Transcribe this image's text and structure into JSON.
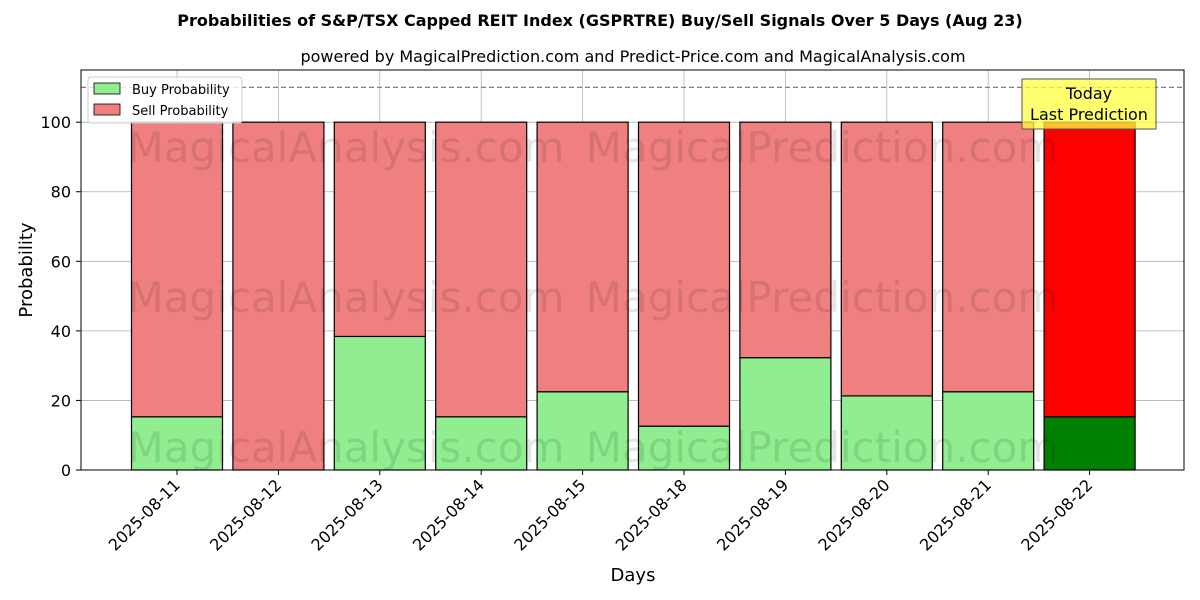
{
  "chart_data": {
    "type": "bar",
    "stacked": true,
    "title": "Probabilities of S&P/TSX Capped REIT Index (GSPRTRE) Buy/Sell Signals Over 5 Days (Aug 23)",
    "subtitle": "powered by MagicalPrediction.com and Predict-Price.com and MagicalAnalysis.com",
    "xlabel": "Days",
    "ylabel": "Probability",
    "ylim": [
      0,
      115
    ],
    "yticks": [
      0,
      20,
      40,
      60,
      80,
      100
    ],
    "reference_line": 110,
    "grid": true,
    "legend_position": "top-left",
    "categories": [
      "2025-08-11",
      "2025-08-12",
      "2025-08-13",
      "2025-08-14",
      "2025-08-15",
      "2025-08-18",
      "2025-08-19",
      "2025-08-20",
      "2025-08-21",
      "2025-08-22"
    ],
    "series": [
      {
        "name": "Buy Probability",
        "color": "#90ee90",
        "highlight_color": "#008000",
        "values": [
          15.3,
          0,
          38.4,
          15.3,
          22.5,
          12.6,
          32.3,
          21.3,
          22.5,
          15.3
        ]
      },
      {
        "name": "Sell Probability",
        "color": "#f08080",
        "highlight_color": "#ff0000",
        "values": [
          84.7,
          100,
          61.6,
          84.7,
          77.5,
          87.4,
          67.7,
          78.7,
          77.5,
          84.7
        ]
      }
    ],
    "highlight_index": 9,
    "annotation": {
      "line1": "Today",
      "line2": "Last Prediction",
      "color": "#ffff40"
    },
    "watermarks": [
      "MagicalAnalysis.com",
      "MagicalPrediction.com"
    ]
  }
}
